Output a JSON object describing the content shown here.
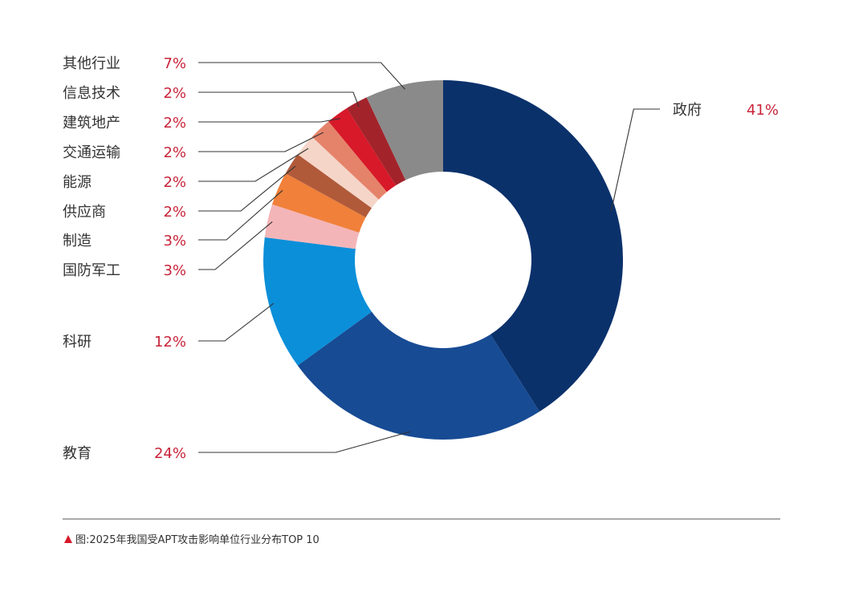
{
  "chart_data": {
    "type": "pie",
    "donut": true,
    "categories": [
      "政府",
      "教育",
      "科研",
      "国防军工",
      "制造",
      "供应商",
      "能源",
      "交通运输",
      "建筑地产",
      "信息技术",
      "其他行业"
    ],
    "values": [
      41,
      24,
      12,
      3,
      3,
      2,
      2,
      2,
      2,
      2,
      7
    ],
    "labels": [
      "41%",
      "24%",
      "12%",
      "3%",
      "3%",
      "2%",
      "2%",
      "2%",
      "2%",
      "2%",
      "7%"
    ],
    "colors": [
      "#0b316b",
      "#174b94",
      "#0b8fd9",
      "#f4b5b8",
      "#f0803a",
      "#b05a3a",
      "#f5d5c8",
      "#e5836a",
      "#d7192a",
      "#a3232a",
      "#8a8a8a"
    ],
    "start_at": "12 o'clock",
    "direction": "clockwise",
    "legend": "leader lines to labels on left and right"
  },
  "caption": {
    "marker_color": "#d7192a",
    "text": "图:2025年我国受APT攻击影响单位行业分布TOP 10"
  },
  "colors": {
    "pct_text": "#c8243a",
    "label_text": "#333333",
    "rule": "#555555"
  }
}
